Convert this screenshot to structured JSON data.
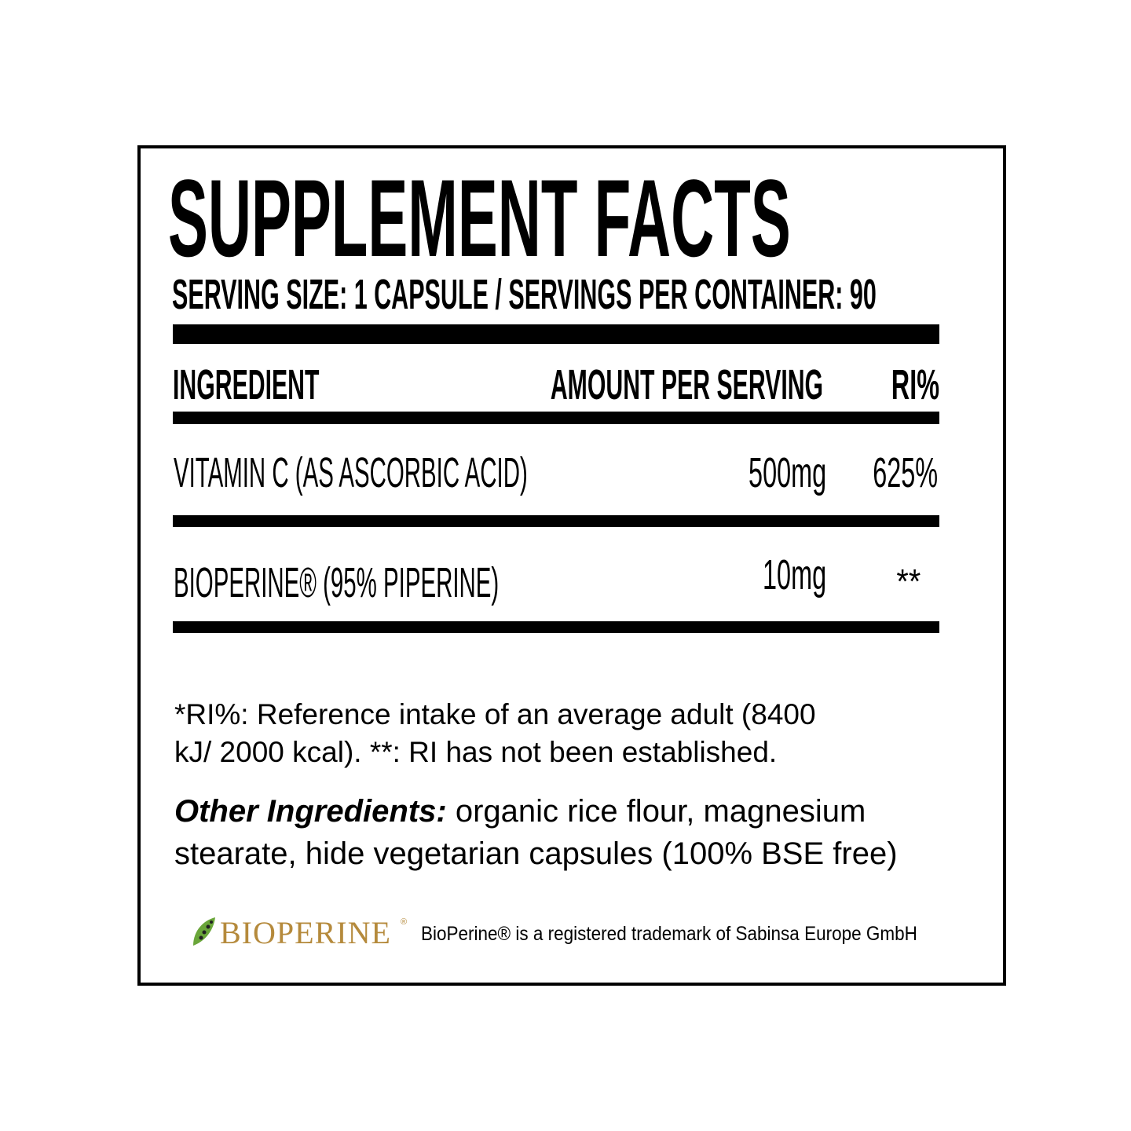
{
  "title": "SUPPLEMENT FACTS",
  "serving_line": "SERVING SIZE: 1 CAPSULE / SERVINGS PER CONTAINER: 90",
  "table": {
    "headers": {
      "ingredient": "INGREDIENT",
      "amount": "AMOUNT PER SERVING",
      "ri": "RI%"
    },
    "rows": [
      {
        "ingredient": "VITAMIN C (AS ASCORBIC ACID)",
        "amount": "500mg",
        "ri": "625%"
      },
      {
        "ingredient": "BIOPERINE® (95% PIPERINE)",
        "amount": "10mg",
        "ri": "**"
      }
    ]
  },
  "footnote": {
    "line1": "*RI%: Reference intake of an average adult (8400",
    "line2": "kJ/ 2000 kcal). **: RI has not been established."
  },
  "other_ingredients": {
    "label": "Other Ingredients:",
    "line1": " organic rice flour, magnesium",
    "line2": "stearate, hide vegetarian capsules (100% BSE free)"
  },
  "trademark": {
    "logo_text": "BIOPERINE",
    "logo_mark": "®",
    "text": "BioPerine® is a registered trademark of  Sabinsa Europe GmbH"
  },
  "colors": {
    "logo_gold": "#b58a3c",
    "logo_green": "#6aa63a"
  }
}
